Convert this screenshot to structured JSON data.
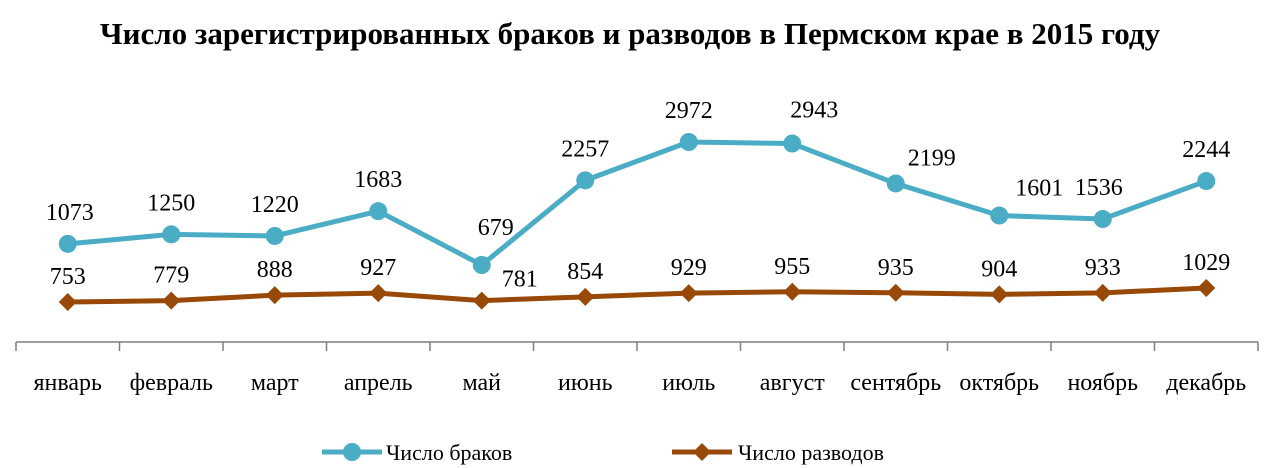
{
  "chart_data": {
    "type": "line",
    "title": "Число зарегистрированных браков и разводов в Пермском крае в 2015 году",
    "categories": [
      "январь",
      "февраль",
      "март",
      "апрель",
      "май",
      "июнь",
      "июль",
      "август",
      "сентябрь",
      "октябрь",
      "ноябрь",
      "декабрь"
    ],
    "series": [
      {
        "name": "Число браков",
        "values": [
          1073,
          1250,
          1220,
          1683,
          679,
          2257,
          2972,
          2943,
          2199,
          1601,
          1536,
          2244
        ],
        "color": "#4bacc6",
        "marker": "circle"
      },
      {
        "name": "Число разводов",
        "values": [
          753,
          779,
          888,
          927,
          781,
          854,
          929,
          955,
          935,
          904,
          933,
          1029
        ],
        "color": "#984807",
        "marker": "diamond"
      }
    ],
    "grid": false,
    "legend": "bottom"
  }
}
